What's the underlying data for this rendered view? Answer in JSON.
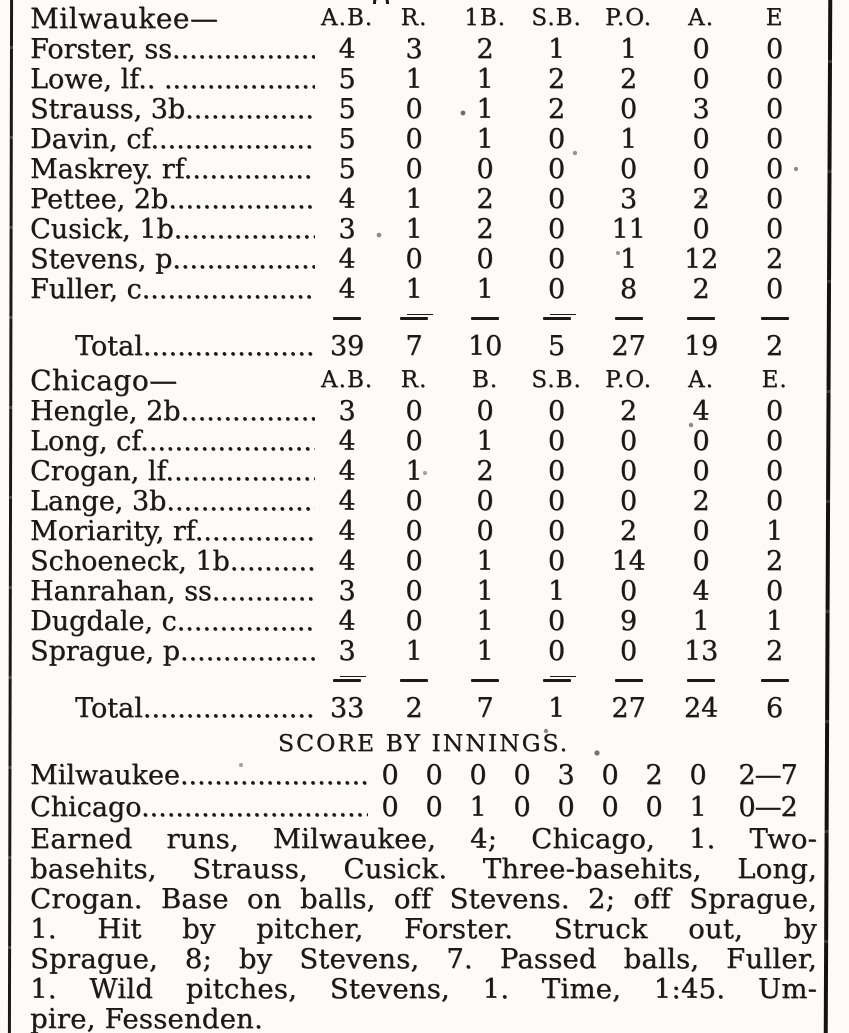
{
  "page": {
    "background": "#fcfbf8",
    "ink": "#1b1815"
  },
  "milwaukee_table": {
    "team_label": "Milwaukee—",
    "headers": [
      "A.B.",
      "R.",
      "1B.",
      "S.B.",
      "P.O.",
      "A.",
      "E"
    ],
    "rows": [
      {
        "name": "Forster, ss....................",
        "vals": [
          "4",
          "3",
          "2",
          "1",
          "1",
          "0",
          "0"
        ]
      },
      {
        "name": "Lowe, lf.. ....................",
        "vals": [
          "5",
          "1",
          "1",
          "2",
          "2",
          "0",
          "0"
        ]
      },
      {
        "name": "Strauss, 3b....................",
        "vals": [
          "5",
          "0",
          "1",
          "2",
          "0",
          "3",
          "0"
        ]
      },
      {
        "name": "Davin, cf......................",
        "vals": [
          "5",
          "0",
          "1",
          "0",
          "1",
          "0",
          "0"
        ]
      },
      {
        "name": "Maskrey. rf....................",
        "vals": [
          "5",
          "0",
          "0",
          "0",
          "0",
          "0",
          "0"
        ]
      },
      {
        "name": "Pettee, 2b.....................",
        "vals": [
          "4",
          "1",
          "2",
          "0",
          "3",
          "2",
          "0"
        ]
      },
      {
        "name": "Cusick, 1b.....................",
        "vals": [
          "3",
          "1",
          "2",
          "0",
          "11",
          "0",
          "0"
        ]
      },
      {
        "name": "Stevens, p.....................",
        "vals": [
          "4",
          "0",
          "0",
          "0",
          "1",
          "12",
          "2"
        ]
      },
      {
        "name": "Fuller, c......................",
        "vals": [
          "4",
          "1",
          "1",
          "0",
          "8",
          "2",
          "0"
        ]
      }
    ],
    "total": {
      "label": "Total.........................",
      "vals": [
        "39",
        "7",
        "10",
        "5",
        "27",
        "19",
        "2"
      ]
    }
  },
  "chicago_table": {
    "team_label": "Chicago—",
    "headers": [
      "A.B.",
      "R.",
      "B.",
      "S.B.",
      "P.O.",
      "A.",
      "E."
    ],
    "rows": [
      {
        "name": "Hengle, 2b.....................",
        "vals": [
          "3",
          "0",
          "0",
          "0",
          "2",
          "4",
          "0"
        ]
      },
      {
        "name": "Long, cf.......................",
        "vals": [
          "4",
          "0",
          "1",
          "0",
          "0",
          "0",
          "0"
        ]
      },
      {
        "name": "Crogan, lf.....................",
        "vals": [
          "4",
          "1",
          "2",
          "0",
          "0",
          "0",
          "0"
        ]
      },
      {
        "name": "Lange, 3b......................",
        "vals": [
          "4",
          "0",
          "0",
          "0",
          "0",
          "2",
          "0"
        ]
      },
      {
        "name": "Moriarity, rf..................",
        "vals": [
          "4",
          "0",
          "0",
          "0",
          "2",
          "0",
          "1"
        ]
      },
      {
        "name": "Schoeneck, 1b..................",
        "vals": [
          "4",
          "0",
          "1",
          "0",
          "14",
          "0",
          "2"
        ]
      },
      {
        "name": "Hanrahan, ss...................",
        "vals": [
          "3",
          "0",
          "1",
          "1",
          "0",
          "4",
          "0"
        ]
      },
      {
        "name": "Dugdale, c.....................",
        "vals": [
          "4",
          "0",
          "1",
          "0",
          "9",
          "1",
          "1"
        ]
      },
      {
        "name": "Sprague, p.....................",
        "vals": [
          "3",
          "1",
          "1",
          "0",
          "0",
          "13",
          "2"
        ]
      }
    ],
    "total": {
      "label": "Total.........................",
      "vals": [
        "33",
        "2",
        "7",
        "1",
        "27",
        "24",
        "6"
      ]
    }
  },
  "score_by_innings": {
    "heading": "SCORE BY INNINGS.",
    "rows": [
      {
        "team": "Milwaukee......................................",
        "cells": [
          "0",
          "0",
          "0",
          "0",
          "3",
          "0",
          "2",
          "0",
          "2—7"
        ]
      },
      {
        "team": "Chicago........................................",
        "cells": [
          "0",
          "0",
          "1",
          "0",
          "0",
          "0",
          "0",
          "1",
          "0—2"
        ]
      }
    ]
  },
  "summary": {
    "lines": [
      {
        "t": "Earned runs, Milwaukee, 4; Chicago, 1. Two-"
      },
      {
        "t": "basehits, Strauss, Cusick. Three-basehits, Long,"
      },
      {
        "t": "Crogan. Base on balls, off Stevens. 2; off Sprague,"
      },
      {
        "t": "1. Hit by pitcher, Forster. Struck out, by"
      },
      {
        "t": "Sprague, 8; by Stevens, 7. Passed balls, Fuller,"
      },
      {
        "t": "1. Wild pitches, Stevens, 1. Time, 1:45. Um-"
      },
      {
        "t": "pire, Fessenden."
      }
    ]
  }
}
